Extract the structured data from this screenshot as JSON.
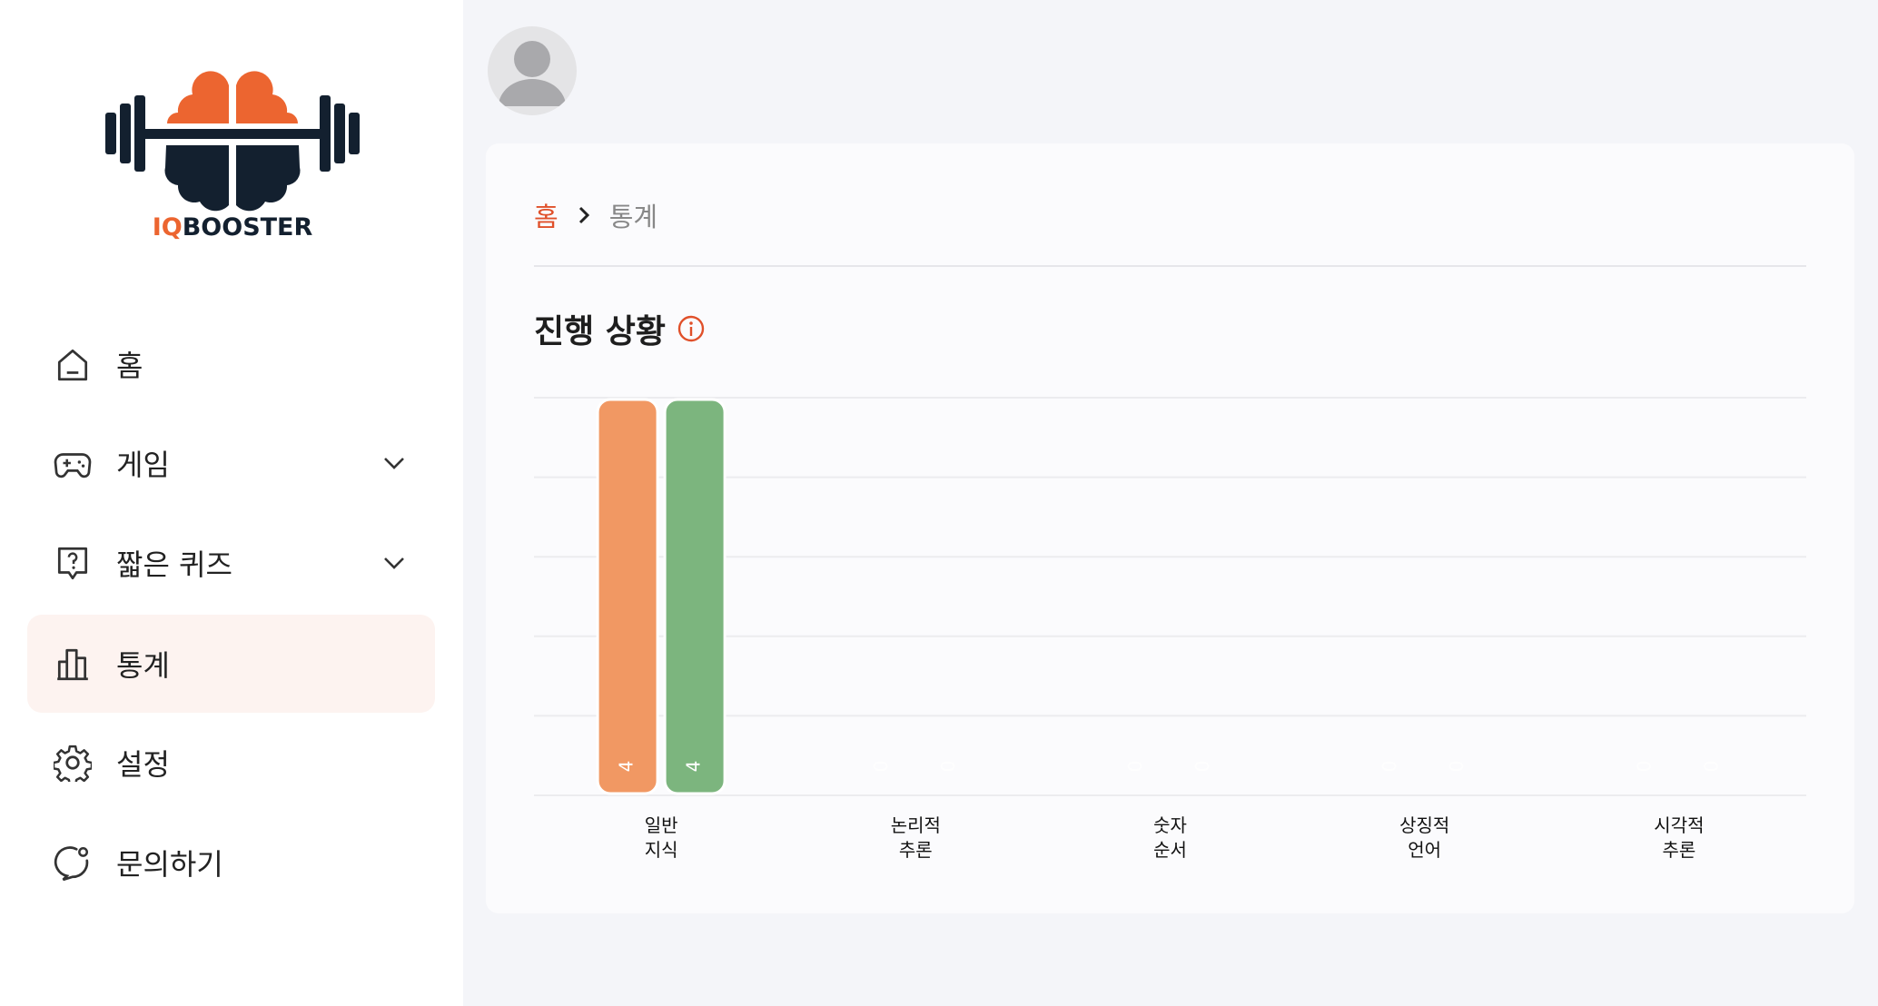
{
  "logo": {
    "text": "IQBOOSTER",
    "brand_orange": "#ec6530",
    "brand_navy": "#13202f"
  },
  "sidebar": {
    "items": [
      {
        "label": "홈",
        "icon": "home-icon",
        "expandable": false,
        "active": false
      },
      {
        "label": "게임",
        "icon": "gamepad-icon",
        "expandable": true,
        "active": false
      },
      {
        "label": "짧은 퀴즈",
        "icon": "question-bubble-icon",
        "expandable": true,
        "active": false
      },
      {
        "label": "통계",
        "icon": "bar-chart-icon",
        "expandable": false,
        "active": true
      },
      {
        "label": "설정",
        "icon": "gear-icon",
        "expandable": false,
        "active": false
      },
      {
        "label": "문의하기",
        "icon": "chat-icon",
        "expandable": false,
        "active": false
      }
    ]
  },
  "header": {
    "avatar": "user-avatar-icon"
  },
  "breadcrumb": {
    "home": "홈",
    "current": "통계"
  },
  "section": {
    "title": "진행 상황",
    "info_icon": "info-icon"
  },
  "colors": {
    "accent": "#e0502a",
    "active_bg": "#fdf3f0"
  },
  "chart_data": {
    "type": "bar",
    "categories": [
      [
        "일반",
        "지식"
      ],
      [
        "논리적",
        "추론"
      ],
      [
        "숫자",
        "순서"
      ],
      [
        "상징적",
        "언어"
      ],
      [
        "시각적",
        "추론"
      ]
    ],
    "series": [
      {
        "values": [
          4,
          0,
          0,
          0,
          0
        ],
        "color": "#f19863"
      },
      {
        "values": [
          4,
          0,
          0,
          0,
          0
        ],
        "color": "#7cb57e"
      }
    ],
    "ylim": [
      0,
      4
    ],
    "grid": true,
    "value_labels": true
  }
}
